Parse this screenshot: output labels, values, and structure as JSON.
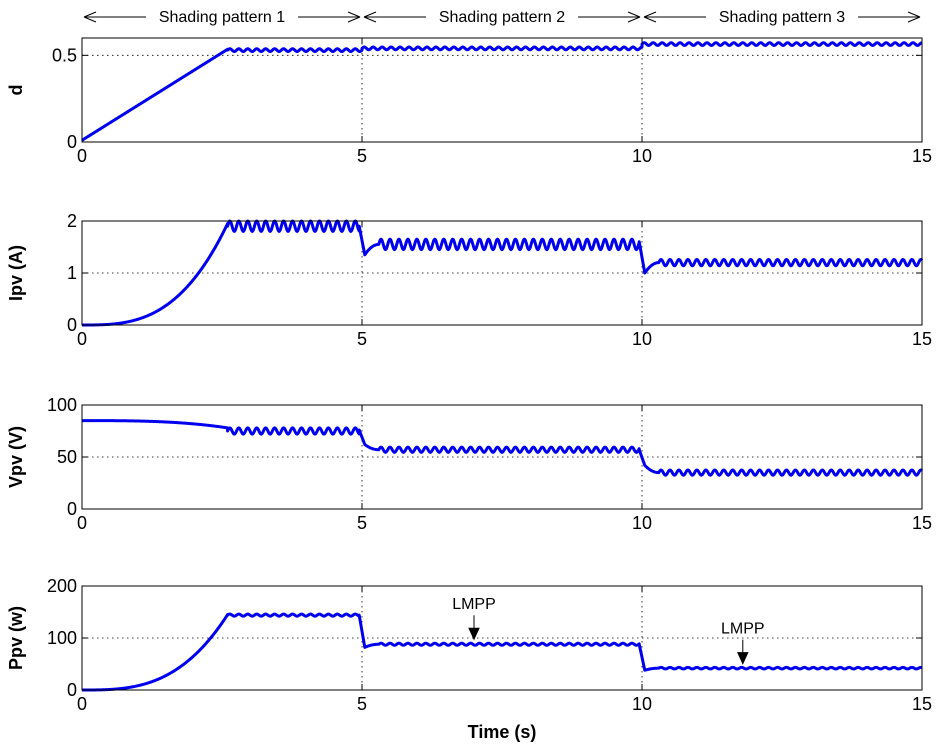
{
  "chart_data": [
    {
      "type": "line",
      "ylabel": "d",
      "xlim": [
        0,
        15
      ],
      "ylim": [
        0,
        0.6
      ],
      "xticks": [
        0,
        5,
        10,
        15
      ],
      "yticks": [
        0,
        0.5
      ],
      "ytick_labels": [
        "0",
        "0.5"
      ],
      "xtick_labels": [
        "0",
        "5",
        "10",
        "15"
      ],
      "grid": true,
      "series": [
        {
          "color": "#0000ee",
          "segments": [
            {
              "type": "ramp",
              "x0": 0,
              "x1": 2.6,
              "y0": 0.01,
              "y1": 0.535
            },
            {
              "type": "osc",
              "x0": 2.6,
              "x1": 5,
              "mean": 0.53,
              "amp": 0.008,
              "period": 0.16
            },
            {
              "type": "osc",
              "x0": 5,
              "x1": 10,
              "mean": 0.54,
              "amp": 0.008,
              "period": 0.16
            },
            {
              "type": "osc",
              "x0": 10,
              "x1": 15,
              "mean": 0.565,
              "amp": 0.008,
              "period": 0.16
            }
          ]
        }
      ],
      "annotations": [
        {
          "text": "Shading pattern 1",
          "x_from": 0,
          "x_to": 5
        },
        {
          "text": "Shading pattern 2",
          "x_from": 5,
          "x_to": 10
        },
        {
          "text": "Shading pattern 3",
          "x_from": 10,
          "x_to": 15
        }
      ]
    },
    {
      "type": "line",
      "ylabel": "Ipv (A)",
      "xlim": [
        0,
        15
      ],
      "ylim": [
        0,
        2
      ],
      "xticks": [
        0,
        5,
        10,
        15
      ],
      "yticks": [
        0,
        1,
        2
      ],
      "ytick_labels": [
        "0",
        "1",
        "2"
      ],
      "xtick_labels": [
        "0",
        "5",
        "10",
        "15"
      ],
      "grid": true,
      "series": [
        {
          "color": "#0000ee",
          "segments": [
            {
              "type": "curve",
              "x0": 0,
              "x1": 2.6,
              "y0": 0,
              "y1": 1.95,
              "power": 3
            },
            {
              "type": "osc",
              "x0": 2.6,
              "x1": 4.95,
              "mean": 1.9,
              "amp": 0.1,
              "period": 0.16
            },
            {
              "type": "drop",
              "x0": 4.95,
              "x1": 5.05,
              "y0": 1.9,
              "y1": 1.35
            },
            {
              "type": "recover",
              "x0": 5.05,
              "x1": 5.3,
              "y0": 1.35,
              "y1": 1.55
            },
            {
              "type": "osc",
              "x0": 5.3,
              "x1": 9.95,
              "mean": 1.55,
              "amp": 0.1,
              "period": 0.16
            },
            {
              "type": "drop",
              "x0": 9.95,
              "x1": 10.05,
              "y0": 1.6,
              "y1": 1.0
            },
            {
              "type": "recover",
              "x0": 10.05,
              "x1": 10.3,
              "y0": 1.0,
              "y1": 1.2
            },
            {
              "type": "osc",
              "x0": 10.3,
              "x1": 15,
              "mean": 1.2,
              "amp": 0.06,
              "period": 0.16
            }
          ]
        }
      ]
    },
    {
      "type": "line",
      "ylabel": "Vpv (V)",
      "xlim": [
        0,
        15
      ],
      "ylim": [
        0,
        100
      ],
      "xticks": [
        0,
        5,
        10,
        15
      ],
      "yticks": [
        0,
        50,
        100
      ],
      "ytick_labels": [
        "0",
        "50",
        "100"
      ],
      "xtick_labels": [
        "0",
        "5",
        "10",
        "15"
      ],
      "grid": true,
      "series": [
        {
          "color": "#0000ee",
          "segments": [
            {
              "type": "sag",
              "x0": 0,
              "x1": 2.6,
              "y0": 85,
              "y1": 78
            },
            {
              "type": "osc",
              "x0": 2.6,
              "x1": 4.95,
              "mean": 75,
              "amp": 3,
              "period": 0.16
            },
            {
              "type": "drop",
              "x0": 4.95,
              "x1": 5.05,
              "y0": 76,
              "y1": 62
            },
            {
              "type": "recover",
              "x0": 5.05,
              "x1": 5.3,
              "y0": 62,
              "y1": 57
            },
            {
              "type": "osc",
              "x0": 5.3,
              "x1": 9.95,
              "mean": 57,
              "amp": 2.5,
              "period": 0.16
            },
            {
              "type": "drop",
              "x0": 9.95,
              "x1": 10.05,
              "y0": 57,
              "y1": 42
            },
            {
              "type": "recover",
              "x0": 10.05,
              "x1": 10.3,
              "y0": 42,
              "y1": 35
            },
            {
              "type": "osc",
              "x0": 10.3,
              "x1": 15,
              "mean": 35,
              "amp": 2.5,
              "period": 0.16
            }
          ]
        }
      ]
    },
    {
      "type": "line",
      "ylabel": "Ppv (w)",
      "xlabel": "Time (s)",
      "xlim": [
        0,
        15
      ],
      "ylim": [
        0,
        200
      ],
      "xticks": [
        0,
        5,
        10,
        15
      ],
      "yticks": [
        0,
        100,
        200
      ],
      "ytick_labels": [
        "0",
        "100",
        "200"
      ],
      "xtick_labels": [
        "0",
        "5",
        "10",
        "15"
      ],
      "grid": true,
      "series": [
        {
          "color": "#0000ee",
          "segments": [
            {
              "type": "curve",
              "x0": 0,
              "x1": 2.6,
              "y0": 0,
              "y1": 145,
              "power": 3
            },
            {
              "type": "osc",
              "x0": 2.6,
              "x1": 4.95,
              "mean": 144,
              "amp": 2,
              "period": 0.16
            },
            {
              "type": "drop",
              "x0": 4.95,
              "x1": 5.05,
              "y0": 144,
              "y1": 82
            },
            {
              "type": "recover",
              "x0": 5.05,
              "x1": 5.3,
              "y0": 82,
              "y1": 88
            },
            {
              "type": "osc",
              "x0": 5.3,
              "x1": 9.95,
              "mean": 88,
              "amp": 2,
              "period": 0.16
            },
            {
              "type": "drop",
              "x0": 9.95,
              "x1": 10.05,
              "y0": 88,
              "y1": 38
            },
            {
              "type": "recover",
              "x0": 10.05,
              "x1": 10.3,
              "y0": 38,
              "y1": 42
            },
            {
              "type": "osc",
              "x0": 10.3,
              "x1": 15,
              "mean": 42,
              "amp": 1.5,
              "period": 0.16
            }
          ]
        }
      ],
      "annotations": [
        {
          "text": "LMPP",
          "x": 7.0,
          "y": 90
        },
        {
          "text": "LMPP",
          "x": 11.8,
          "y": 43
        }
      ]
    }
  ]
}
